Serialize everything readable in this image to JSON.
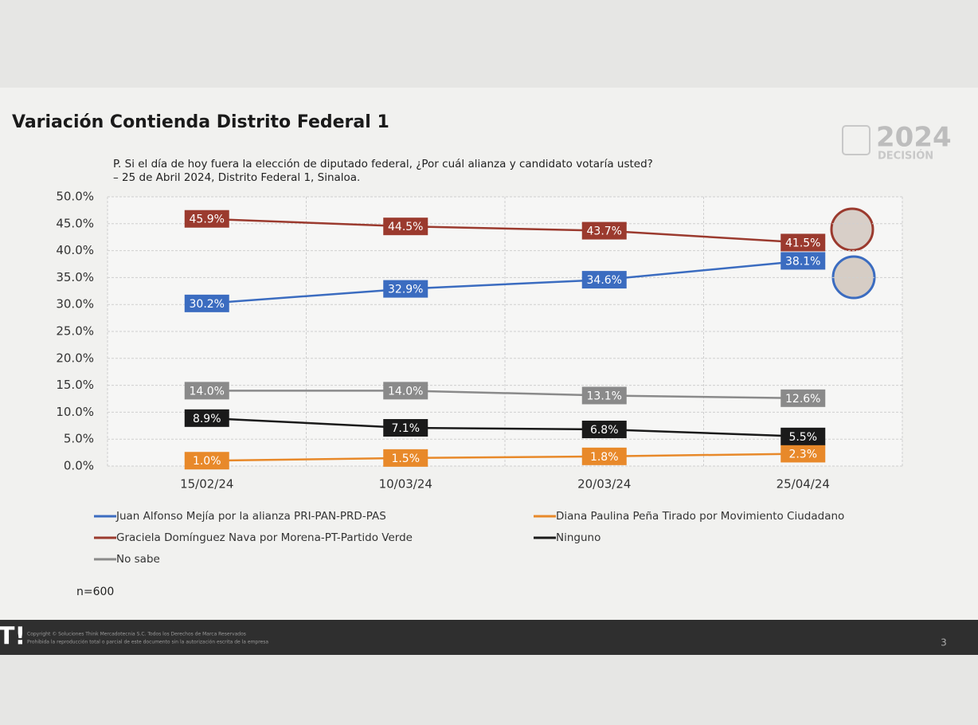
{
  "chart_data": {
    "type": "line",
    "title": "Variación Contienda Distrito Federal 1",
    "subtitle": [
      "P. Si el día de hoy fuera la elección de diputado federal, ¿Por cuál alianza y candidato votaría usted?",
      "– 25 de Abril 2024, Distrito Federal 1, Sinaloa."
    ],
    "categories": [
      "15/02/24",
      "10/03/24",
      "20/03/24",
      "25/04/24"
    ],
    "series": [
      {
        "name": "Juan Alfonso Mejía por la alianza PRI-PAN-PRD-PAS",
        "color": "#3b6cc0",
        "values": [
          30.2,
          32.9,
          34.6,
          38.1
        ],
        "value_labels": [
          "30.2%",
          "32.9%",
          "34.6%",
          "38.1%"
        ]
      },
      {
        "name": "Diana Paulina Peña Tirado por Movimiento Ciudadano",
        "color": "#e8892a",
        "values": [
          1.0,
          1.5,
          1.8,
          2.3
        ],
        "value_labels": [
          "1.0%",
          "1.5%",
          "1.8%",
          "2.3%"
        ]
      },
      {
        "name": "Graciela Domínguez Nava por Morena-PT-Partido Verde",
        "color": "#9b3a2e",
        "values": [
          45.9,
          44.5,
          43.7,
          41.5
        ],
        "value_labels": [
          "45.9%",
          "44.5%",
          "43.7%",
          "41.5%"
        ]
      },
      {
        "name": "Ninguno",
        "color": "#1a1a1a",
        "values": [
          8.9,
          7.1,
          6.8,
          5.5
        ],
        "value_labels": [
          "8.9%",
          "7.1%",
          "6.8%",
          "5.5%"
        ]
      },
      {
        "name": "No sabe",
        "color": "#8a8a8a",
        "values": [
          14.0,
          14.0,
          13.1,
          12.6
        ],
        "value_labels": [
          "14.0%",
          "14.0%",
          "13.1%",
          "12.6%"
        ]
      }
    ],
    "ylim": [
      0,
      50
    ],
    "yticks": [
      {
        "value": 0,
        "label": "0.0%"
      },
      {
        "value": 5,
        "label": "5.0%"
      },
      {
        "value": 10,
        "label": "10.0%"
      },
      {
        "value": 15,
        "label": "15.0%"
      },
      {
        "value": 20,
        "label": "20.0%"
      },
      {
        "value": 25,
        "label": "25.0%"
      },
      {
        "value": 30,
        "label": "30.0%"
      },
      {
        "value": 35,
        "label": "35.0%"
      },
      {
        "value": 40,
        "label": "40.0%"
      },
      {
        "value": 45,
        "label": "45.0%"
      },
      {
        "value": 50,
        "label": "50.0%"
      }
    ],
    "grid": true,
    "legend": "bottom",
    "note": "n=600"
  },
  "logo": {
    "year": "2024",
    "brand": "DECISIÓN"
  },
  "footer": {
    "mark": "T!",
    "copyright": [
      "Copyright © Soluciones Think Mercadotecnia S.C. Todos los Derechos de Marca Reservados",
      "Prohibida la reproducción total o parcial de este documento sin la autorización escrita de la empresa"
    ],
    "page": "3"
  }
}
